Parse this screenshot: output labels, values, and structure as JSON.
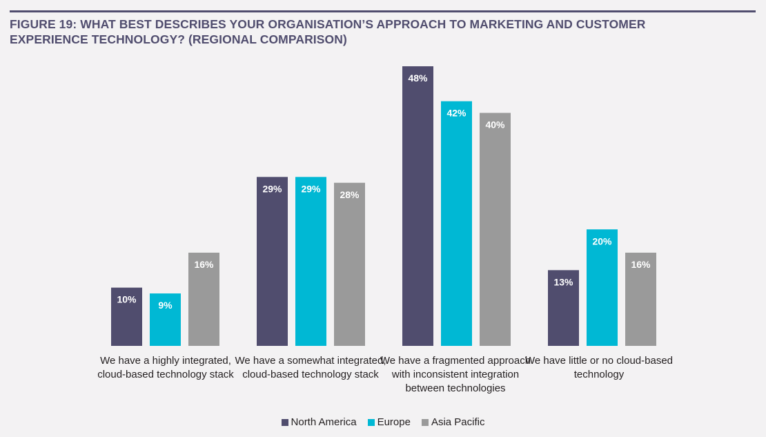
{
  "title": "FIGURE 19: WHAT BEST DESCRIBES YOUR ORGANISATION’S APPROACH TO MARKETING AND CUSTOMER EXPERIENCE TECHNOLOGY? (REGIONAL COMPARISON)",
  "chart_data": {
    "type": "bar",
    "title": "FIGURE 19: WHAT BEST DESCRIBES YOUR ORGANISATION’S APPROACH TO MARKETING AND CUSTOMER EXPERIENCE TECHNOLOGY? (REGIONAL COMPARISON)",
    "xlabel": "",
    "ylabel": "",
    "ylim": [
      0,
      50
    ],
    "grid": false,
    "legend_position": "bottom-center",
    "value_suffix": "%",
    "categories": [
      "We have a highly integrated, cloud-based technology stack",
      "We have a somewhat integrated, cloud-based technology stack",
      "We have a fragmented approach with inconsistent integration between technologies",
      "We have little or no cloud-based technology"
    ],
    "series": [
      {
        "name": "North America",
        "color": "#504d6e",
        "values": [
          10,
          29,
          48,
          13
        ]
      },
      {
        "name": "Europe",
        "color": "#00b8d4",
        "values": [
          9,
          29,
          42,
          20
        ]
      },
      {
        "name": "Asia Pacific",
        "color": "#9a9a9a",
        "values": [
          16,
          28,
          40,
          16
        ]
      }
    ],
    "data_labels": [
      [
        "10%",
        "29%",
        "48%",
        "13%"
      ],
      [
        "9%",
        "29%",
        "42%",
        "20%"
      ],
      [
        "16%",
        "28%",
        "40%",
        "16%"
      ]
    ]
  }
}
